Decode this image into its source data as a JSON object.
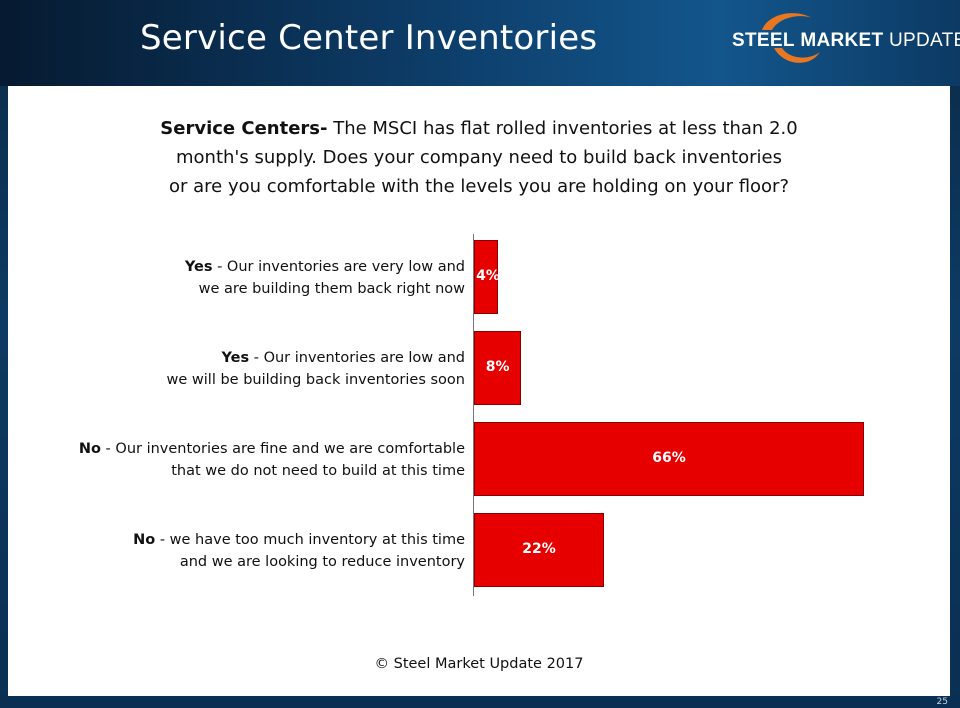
{
  "header": {
    "title": "Service Center Inventories",
    "logo": {
      "text_part1": "STEEL",
      "text_part2": "MARKET",
      "text_part3": "UPDATE",
      "swoosh_color": "#e87722"
    }
  },
  "question": {
    "lead": "Service Centers-",
    "line1_rest": " The MSCI has flat rolled inventories at less than 2.0",
    "line2": "month's supply. Does your company need to build back inventories",
    "line3": "or are you comfortable with the levels you are holding on your floor?"
  },
  "chart_data": {
    "type": "bar",
    "orientation": "horizontal",
    "unit": "%",
    "bar_color": "#e60000",
    "categories": [
      {
        "keyword": "Yes",
        "line1_rest": " - Our inventories are very low and",
        "line2": "we are building them back right now"
      },
      {
        "keyword": "Yes",
        "line1_rest": " - Our inventories are low and",
        "line2": "we will be building back inventories soon"
      },
      {
        "keyword": "No",
        "line1_rest": " - Our inventories are fine and we are comfortable",
        "line2": "that we do not need to build at this time"
      },
      {
        "keyword": "No",
        "line1_rest": " - we have too much inventory at this time",
        "line2": "and we are looking to reduce inventory"
      }
    ],
    "values": [
      4,
      8,
      66,
      22
    ],
    "value_labels": [
      "4%",
      "8%",
      "66%",
      "22%"
    ],
    "xlim": [
      0,
      70
    ],
    "grid": false,
    "legend": "none"
  },
  "footer": {
    "copyright": "© Steel Market Update 2017"
  },
  "page_number": "25"
}
